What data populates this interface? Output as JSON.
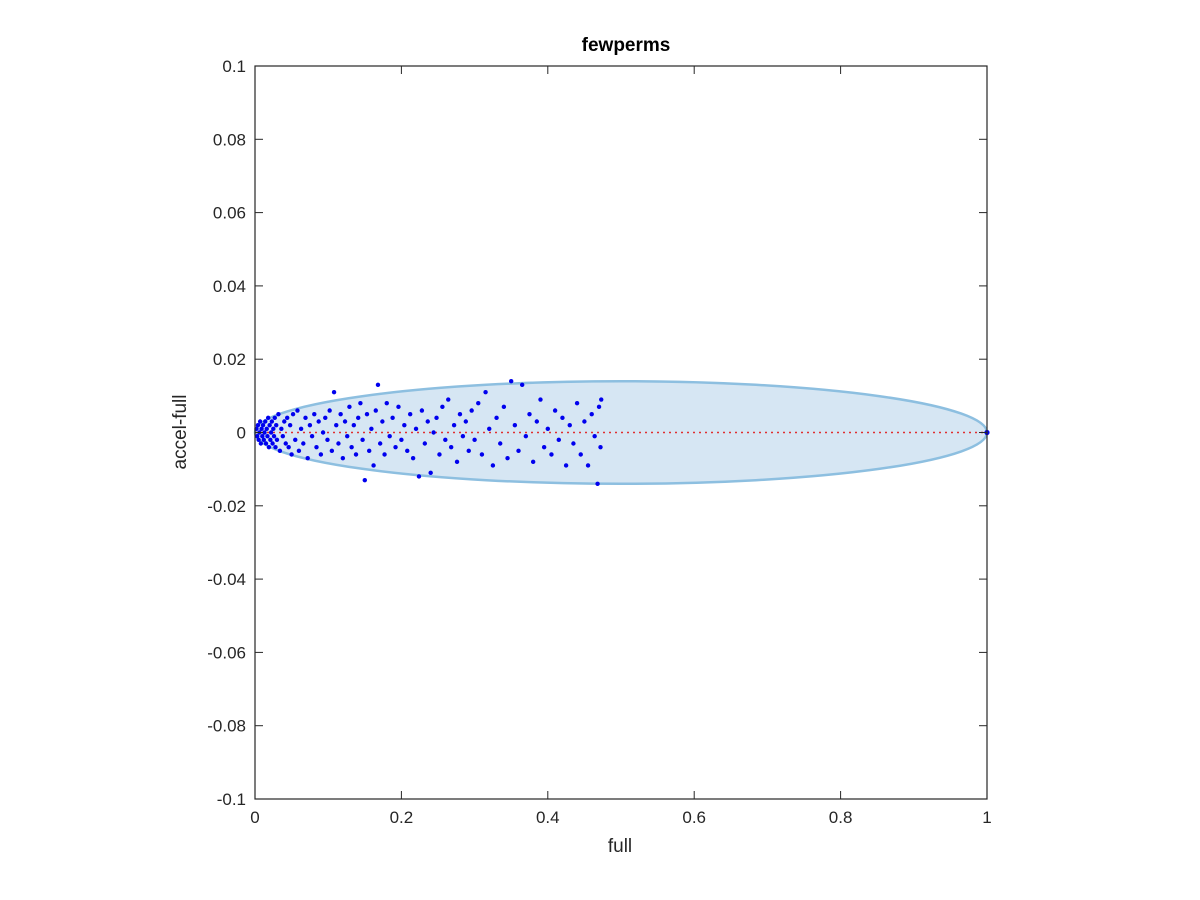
{
  "chart_data": {
    "type": "scatter",
    "title": "fewperms",
    "xlabel": "full",
    "ylabel": "accel-full",
    "xlim": [
      0,
      1
    ],
    "ylim": [
      -0.1,
      0.1
    ],
    "xticks": [
      0,
      0.2,
      0.4,
      0.6,
      0.8,
      1
    ],
    "xtick_labels": [
      "0",
      "0.2",
      "0.4",
      "0.6",
      "0.8",
      "1"
    ],
    "yticks": [
      -0.1,
      -0.08,
      -0.06,
      -0.04,
      -0.02,
      0,
      0.02,
      0.04,
      0.06,
      0.08,
      0.1
    ],
    "ytick_labels": [
      "-0.1",
      "-0.08",
      "-0.06",
      "-0.04",
      "-0.02",
      "0",
      "0.02",
      "0.04",
      "0.06",
      "0.08",
      "0.1"
    ],
    "grid": false,
    "ellipse": {
      "center": [
        0.5,
        0
      ],
      "radius_x": 0.5,
      "radius_y": 0.014,
      "fill": "#d6e6f3",
      "stroke": "#8dbfe0"
    },
    "reference_line": {
      "x": [
        0,
        1
      ],
      "y": [
        0,
        0
      ],
      "color": "#e03030",
      "style": "dotted"
    },
    "colors": {
      "points": "#0000ee",
      "axes": "#262626"
    },
    "points": [
      [
        0.002,
        0.001
      ],
      [
        0.003,
        -0.001
      ],
      [
        0.004,
        0.002
      ],
      [
        0.005,
        -0.002
      ],
      [
        0.006,
        0.0
      ],
      [
        0.007,
        0.003
      ],
      [
        0.008,
        -0.003
      ],
      [
        0.009,
        0.001
      ],
      [
        0.01,
        -0.001
      ],
      [
        0.011,
        0.002
      ],
      [
        0.012,
        -0.002
      ],
      [
        0.013,
        0.0
      ],
      [
        0.014,
        0.003
      ],
      [
        0.015,
        -0.003
      ],
      [
        0.016,
        0.001
      ],
      [
        0.017,
        -0.001
      ],
      [
        0.018,
        0.004
      ],
      [
        0.019,
        -0.004
      ],
      [
        0.02,
        0.002
      ],
      [
        0.021,
        -0.002
      ],
      [
        0.022,
        0.0
      ],
      [
        0.023,
        0.003
      ],
      [
        0.024,
        -0.003
      ],
      [
        0.025,
        0.001
      ],
      [
        0.026,
        -0.001
      ],
      [
        0.027,
        0.004
      ],
      [
        0.028,
        -0.004
      ],
      [
        0.029,
        0.002
      ],
      [
        0.03,
        -0.002
      ],
      [
        0.032,
        0.005
      ],
      [
        0.034,
        -0.005
      ],
      [
        0.036,
        0.001
      ],
      [
        0.038,
        -0.001
      ],
      [
        0.04,
        0.003
      ],
      [
        0.042,
        -0.003
      ],
      [
        0.044,
        0.004
      ],
      [
        0.046,
        -0.004
      ],
      [
        0.048,
        0.002
      ],
      [
        0.05,
        -0.006
      ],
      [
        0.052,
        0.005
      ],
      [
        0.055,
        -0.002
      ],
      [
        0.058,
        0.006
      ],
      [
        0.06,
        -0.005
      ],
      [
        0.063,
        0.001
      ],
      [
        0.066,
        -0.003
      ],
      [
        0.069,
        0.004
      ],
      [
        0.072,
        -0.007
      ],
      [
        0.075,
        0.002
      ],
      [
        0.078,
        -0.001
      ],
      [
        0.081,
        0.005
      ],
      [
        0.084,
        -0.004
      ],
      [
        0.087,
        0.003
      ],
      [
        0.09,
        -0.006
      ],
      [
        0.093,
        0.0
      ],
      [
        0.096,
        0.004
      ],
      [
        0.099,
        -0.002
      ],
      [
        0.102,
        0.006
      ],
      [
        0.105,
        -0.005
      ],
      [
        0.108,
        0.011
      ],
      [
        0.111,
        0.002
      ],
      [
        0.114,
        -0.003
      ],
      [
        0.117,
        0.005
      ],
      [
        0.12,
        -0.007
      ],
      [
        0.123,
        0.003
      ],
      [
        0.126,
        -0.001
      ],
      [
        0.129,
        0.007
      ],
      [
        0.132,
        -0.004
      ],
      [
        0.135,
        0.002
      ],
      [
        0.138,
        -0.006
      ],
      [
        0.141,
        0.004
      ],
      [
        0.144,
        0.008
      ],
      [
        0.147,
        -0.002
      ],
      [
        0.15,
        -0.013
      ],
      [
        0.153,
        0.005
      ],
      [
        0.156,
        -0.005
      ],
      [
        0.159,
        0.001
      ],
      [
        0.162,
        -0.009
      ],
      [
        0.165,
        0.006
      ],
      [
        0.168,
        0.013
      ],
      [
        0.171,
        -0.003
      ],
      [
        0.174,
        0.003
      ],
      [
        0.177,
        -0.006
      ],
      [
        0.18,
        0.008
      ],
      [
        0.184,
        -0.001
      ],
      [
        0.188,
        0.004
      ],
      [
        0.192,
        -0.004
      ],
      [
        0.196,
        0.007
      ],
      [
        0.2,
        -0.002
      ],
      [
        0.204,
        0.002
      ],
      [
        0.208,
        -0.005
      ],
      [
        0.212,
        0.005
      ],
      [
        0.216,
        -0.007
      ],
      [
        0.22,
        0.001
      ],
      [
        0.224,
        -0.012
      ],
      [
        0.228,
        0.006
      ],
      [
        0.232,
        -0.003
      ],
      [
        0.236,
        0.003
      ],
      [
        0.24,
        -0.011
      ],
      [
        0.244,
        0.0
      ],
      [
        0.248,
        0.004
      ],
      [
        0.252,
        -0.006
      ],
      [
        0.256,
        0.007
      ],
      [
        0.26,
        -0.002
      ],
      [
        0.264,
        0.009
      ],
      [
        0.268,
        -0.004
      ],
      [
        0.272,
        0.002
      ],
      [
        0.276,
        -0.008
      ],
      [
        0.28,
        0.005
      ],
      [
        0.284,
        -0.001
      ],
      [
        0.288,
        0.003
      ],
      [
        0.292,
        -0.005
      ],
      [
        0.296,
        0.006
      ],
      [
        0.3,
        -0.002
      ],
      [
        0.305,
        0.008
      ],
      [
        0.31,
        -0.006
      ],
      [
        0.315,
        0.011
      ],
      [
        0.32,
        0.001
      ],
      [
        0.325,
        -0.009
      ],
      [
        0.33,
        0.004
      ],
      [
        0.335,
        -0.003
      ],
      [
        0.34,
        0.007
      ],
      [
        0.345,
        -0.007
      ],
      [
        0.35,
        0.014
      ],
      [
        0.355,
        0.002
      ],
      [
        0.36,
        -0.005
      ],
      [
        0.365,
        0.013
      ],
      [
        0.37,
        -0.001
      ],
      [
        0.375,
        0.005
      ],
      [
        0.38,
        -0.008
      ],
      [
        0.385,
        0.003
      ],
      [
        0.39,
        0.009
      ],
      [
        0.395,
        -0.004
      ],
      [
        0.4,
        0.001
      ],
      [
        0.405,
        -0.006
      ],
      [
        0.41,
        0.006
      ],
      [
        0.415,
        -0.002
      ],
      [
        0.42,
        0.004
      ],
      [
        0.425,
        -0.009
      ],
      [
        0.43,
        0.002
      ],
      [
        0.435,
        -0.003
      ],
      [
        0.44,
        0.008
      ],
      [
        0.445,
        -0.006
      ],
      [
        0.45,
        0.003
      ],
      [
        0.455,
        -0.009
      ],
      [
        0.46,
        0.005
      ],
      [
        0.464,
        -0.001
      ],
      [
        0.468,
        -0.014
      ],
      [
        0.47,
        0.007
      ],
      [
        0.472,
        -0.004
      ],
      [
        0.473,
        0.009
      ]
    ],
    "endpoint": [
      1,
      0
    ]
  }
}
